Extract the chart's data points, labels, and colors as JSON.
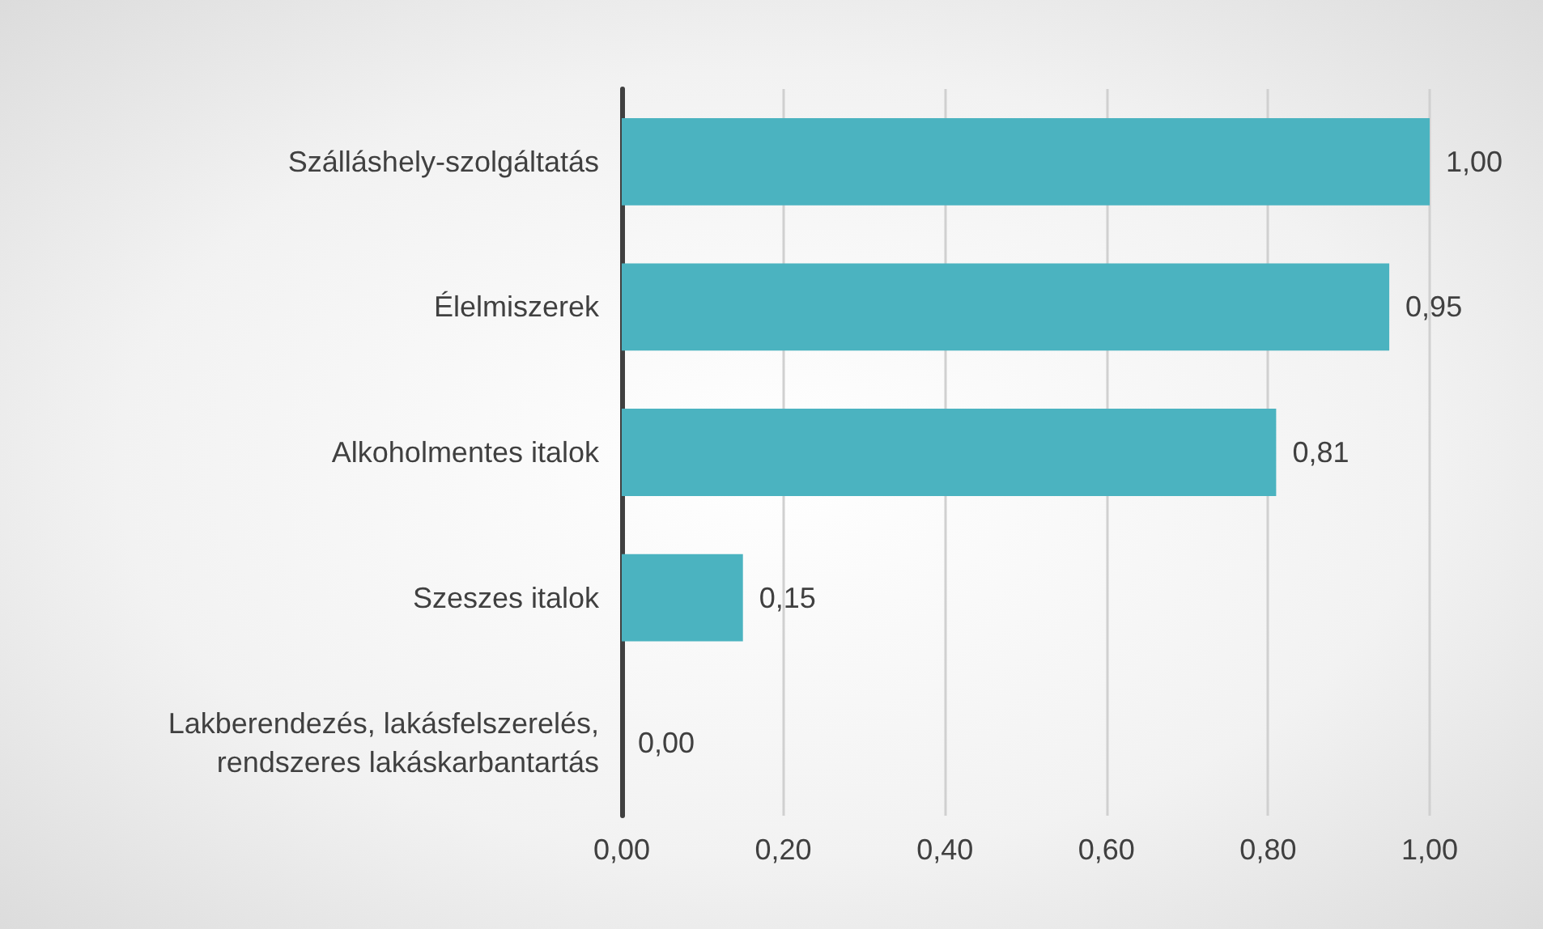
{
  "chart_data": {
    "type": "bar",
    "orientation": "horizontal",
    "categories": [
      "Szálláshely-szolgáltatás",
      "Élelmiszerek",
      "Alkoholmentes italok",
      "Szeszes italok",
      "Lakberendezés, lakásfelszerelés,\nrendszeres lakáskarbantartás"
    ],
    "values": [
      1.0,
      0.95,
      0.81,
      0.15,
      0.0
    ],
    "value_labels": [
      "1,00",
      "0,95",
      "0,81",
      "0,15",
      "0,00"
    ],
    "color": "#4bb3c0",
    "xlim": [
      0,
      1
    ],
    "xticks": [
      {
        "value": 0,
        "label": "0,00"
      },
      {
        "value": 0.2,
        "label": "0,20"
      },
      {
        "value": 0.4,
        "label": "0,40"
      },
      {
        "value": 0.6,
        "label": "0,60"
      },
      {
        "value": 0.8,
        "label": "0,80"
      },
      {
        "value": 1,
        "label": "1,00"
      }
    ],
    "grid": "x"
  }
}
